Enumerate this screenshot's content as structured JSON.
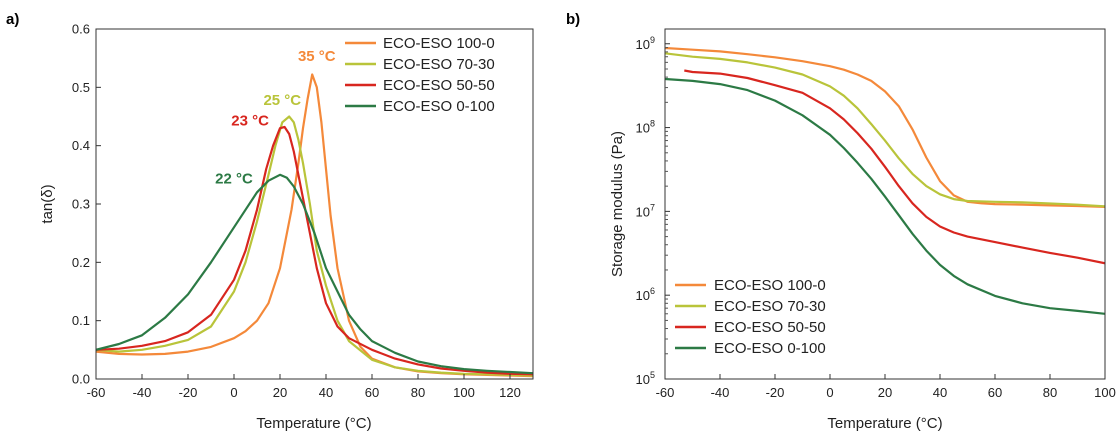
{
  "colors": {
    "ECO-ESO 100-0": "#f4893a",
    "ECO-ESO 70-30": "#b9c43a",
    "ECO-ESO 50-50": "#d8261f",
    "ECO-ESO 0-100": "#2c7a45"
  },
  "chart_data": [
    {
      "panel_label": "a)",
      "type": "line",
      "xlabel": "Temperature (°C)",
      "ylabel": "tan(δ)",
      "xlim": [
        -60,
        130
      ],
      "ylim": [
        0,
        0.6
      ],
      "x_ticks": [
        -60,
        -40,
        -20,
        0,
        20,
        40,
        60,
        80,
        100,
        120
      ],
      "y_ticks": [
        0.0,
        0.1,
        0.2,
        0.3,
        0.4,
        0.5,
        0.6
      ],
      "y_tick_labels": [
        "0.0",
        "0.1",
        "0.2",
        "0.3",
        "0.4",
        "0.5",
        "0.6"
      ],
      "grid": false,
      "legend_position": "top-right",
      "series": [
        {
          "name": "ECO-ESO 100-0",
          "x": [
            -60,
            -50,
            -40,
            -30,
            -20,
            -10,
            0,
            5,
            10,
            15,
            20,
            25,
            28,
            30,
            32,
            34,
            36,
            38,
            40,
            42,
            45,
            50,
            55,
            60,
            70,
            80,
            90,
            100,
            110,
            120,
            130
          ],
          "y": [
            0.047,
            0.043,
            0.042,
            0.043,
            0.047,
            0.055,
            0.07,
            0.082,
            0.1,
            0.13,
            0.19,
            0.29,
            0.37,
            0.43,
            0.48,
            0.522,
            0.5,
            0.44,
            0.36,
            0.28,
            0.19,
            0.1,
            0.055,
            0.035,
            0.02,
            0.013,
            0.01,
            0.008,
            0.007,
            0.006,
            0.005
          ]
        },
        {
          "name": "ECO-ESO 70-30",
          "x": [
            -60,
            -50,
            -40,
            -30,
            -20,
            -10,
            0,
            5,
            10,
            15,
            18,
            21,
            24,
            26,
            28,
            30,
            33,
            36,
            40,
            45,
            50,
            60,
            70,
            80,
            90,
            100,
            110,
            120,
            130
          ],
          "y": [
            0.05,
            0.047,
            0.05,
            0.057,
            0.067,
            0.09,
            0.15,
            0.2,
            0.27,
            0.35,
            0.4,
            0.44,
            0.45,
            0.44,
            0.41,
            0.37,
            0.3,
            0.22,
            0.16,
            0.1,
            0.065,
            0.033,
            0.02,
            0.014,
            0.011,
            0.009,
            0.008,
            0.007,
            0.006
          ]
        },
        {
          "name": "ECO-ESO 50-50",
          "x": [
            -60,
            -50,
            -40,
            -30,
            -20,
            -10,
            0,
            5,
            10,
            14,
            17,
            20,
            22,
            24,
            26,
            28,
            30,
            33,
            36,
            40,
            45,
            50,
            60,
            70,
            80,
            90,
            100,
            110,
            120,
            130
          ],
          "y": [
            0.05,
            0.052,
            0.057,
            0.065,
            0.08,
            0.11,
            0.17,
            0.22,
            0.29,
            0.36,
            0.4,
            0.43,
            0.432,
            0.42,
            0.39,
            0.35,
            0.31,
            0.25,
            0.19,
            0.13,
            0.09,
            0.07,
            0.05,
            0.035,
            0.025,
            0.018,
            0.014,
            0.011,
            0.009,
            0.008
          ]
        },
        {
          "name": "ECO-ESO 0-100",
          "x": [
            -60,
            -50,
            -40,
            -30,
            -20,
            -10,
            0,
            5,
            10,
            15,
            20,
            23,
            26,
            30,
            35,
            40,
            45,
            50,
            55,
            60,
            70,
            80,
            90,
            100,
            110,
            120,
            130
          ],
          "y": [
            0.05,
            0.06,
            0.075,
            0.105,
            0.145,
            0.2,
            0.26,
            0.29,
            0.32,
            0.34,
            0.35,
            0.345,
            0.33,
            0.3,
            0.25,
            0.19,
            0.15,
            0.11,
            0.085,
            0.065,
            0.045,
            0.03,
            0.022,
            0.017,
            0.014,
            0.012,
            0.01
          ]
        }
      ],
      "annotations": [
        {
          "text": "35 °C",
          "series": "ECO-ESO 100-0",
          "x": 36,
          "y": 0.545
        },
        {
          "text": "25 °C",
          "series": "ECO-ESO 70-30",
          "x": 21,
          "y": 0.47
        },
        {
          "text": "23 °C",
          "series": "ECO-ESO 50-50",
          "x": 7,
          "y": 0.435
        },
        {
          "text": "22 °C",
          "series": "ECO-ESO 0-100",
          "x": 0,
          "y": 0.335
        }
      ]
    },
    {
      "panel_label": "b)",
      "type": "line",
      "xlabel": "Temperature (°C)",
      "ylabel": "Storage modulus (Pa)",
      "xlim": [
        -60,
        100
      ],
      "ylim": [
        100000,
        1500000000
      ],
      "y_scale": "log",
      "x_ticks": [
        -60,
        -40,
        -20,
        0,
        20,
        40,
        60,
        80,
        100
      ],
      "y_ticks": [
        100000,
        1000000,
        10000000,
        100000000,
        1000000000
      ],
      "y_tick_labels": [
        [
          "10",
          "5"
        ],
        [
          "10",
          "6"
        ],
        [
          "10",
          "7"
        ],
        [
          "10",
          "8"
        ],
        [
          "10",
          "9"
        ]
      ],
      "grid": false,
      "legend_position": "bottom-left",
      "series": [
        {
          "name": "ECO-ESO 100-0",
          "x": [
            -60,
            -50,
            -40,
            -30,
            -20,
            -10,
            0,
            5,
            10,
            15,
            20,
            25,
            30,
            35,
            40,
            45,
            50,
            55,
            60,
            70,
            80,
            90,
            100
          ],
          "y": [
            890000000.0,
            850000000.0,
            810000000.0,
            750000000.0,
            690000000.0,
            620000000.0,
            540000000.0,
            490000000.0,
            430000000.0,
            360000000.0,
            270000000.0,
            180000000.0,
            95000000.0,
            44000000.0,
            23000000.0,
            15500000.0,
            13000000.0,
            12500000.0,
            12200000.0,
            12000000.0,
            11800000.0,
            11600000.0,
            11300000.0
          ]
        },
        {
          "name": "ECO-ESO 70-30",
          "x": [
            -60,
            -50,
            -40,
            -30,
            -20,
            -10,
            0,
            5,
            10,
            15,
            20,
            25,
            30,
            35,
            40,
            45,
            50,
            60,
            70,
            80,
            90,
            100
          ],
          "y": [
            770000000.0,
            700000000.0,
            660000000.0,
            600000000.0,
            520000000.0,
            430000000.0,
            310000000.0,
            240000000.0,
            170000000.0,
            110000000.0,
            70000000.0,
            43000000.0,
            28000000.0,
            20000000.0,
            16000000.0,
            14000000.0,
            13300000.0,
            13000000.0,
            12800000.0,
            12400000.0,
            12000000.0,
            11500000.0
          ]
        },
        {
          "name": "ECO-ESO 50-50",
          "x": [
            -53,
            -50,
            -40,
            -30,
            -20,
            -10,
            0,
            5,
            10,
            15,
            20,
            25,
            30,
            35,
            40,
            45,
            50,
            60,
            70,
            80,
            90,
            100
          ],
          "y": [
            480000000.0,
            460000000.0,
            440000000.0,
            390000000.0,
            320000000.0,
            260000000.0,
            170000000.0,
            125000000.0,
            86000000.0,
            56000000.0,
            34000000.0,
            20000000.0,
            12500000.0,
            8600000.0,
            6600000.0,
            5600000.0,
            5000000.0,
            4300000.0,
            3700000.0,
            3200000.0,
            2800000.0,
            2400000.0
          ]
        },
        {
          "name": "ECO-ESO 0-100",
          "x": [
            -60,
            -50,
            -40,
            -30,
            -20,
            -10,
            0,
            5,
            10,
            15,
            20,
            25,
            30,
            35,
            40,
            45,
            50,
            60,
            70,
            80,
            90,
            100
          ],
          "y": [
            380000000.0,
            360000000.0,
            330000000.0,
            280000000.0,
            210000000.0,
            140000000.0,
            82000000.0,
            57000000.0,
            38000000.0,
            24500000.0,
            15000000.0,
            9000000.0,
            5400000.0,
            3400000.0,
            2300000.0,
            1700000.0,
            1350000.0,
            980000.0,
            800000.0,
            700000.0,
            650000.0,
            600000.0
          ]
        }
      ]
    }
  ]
}
